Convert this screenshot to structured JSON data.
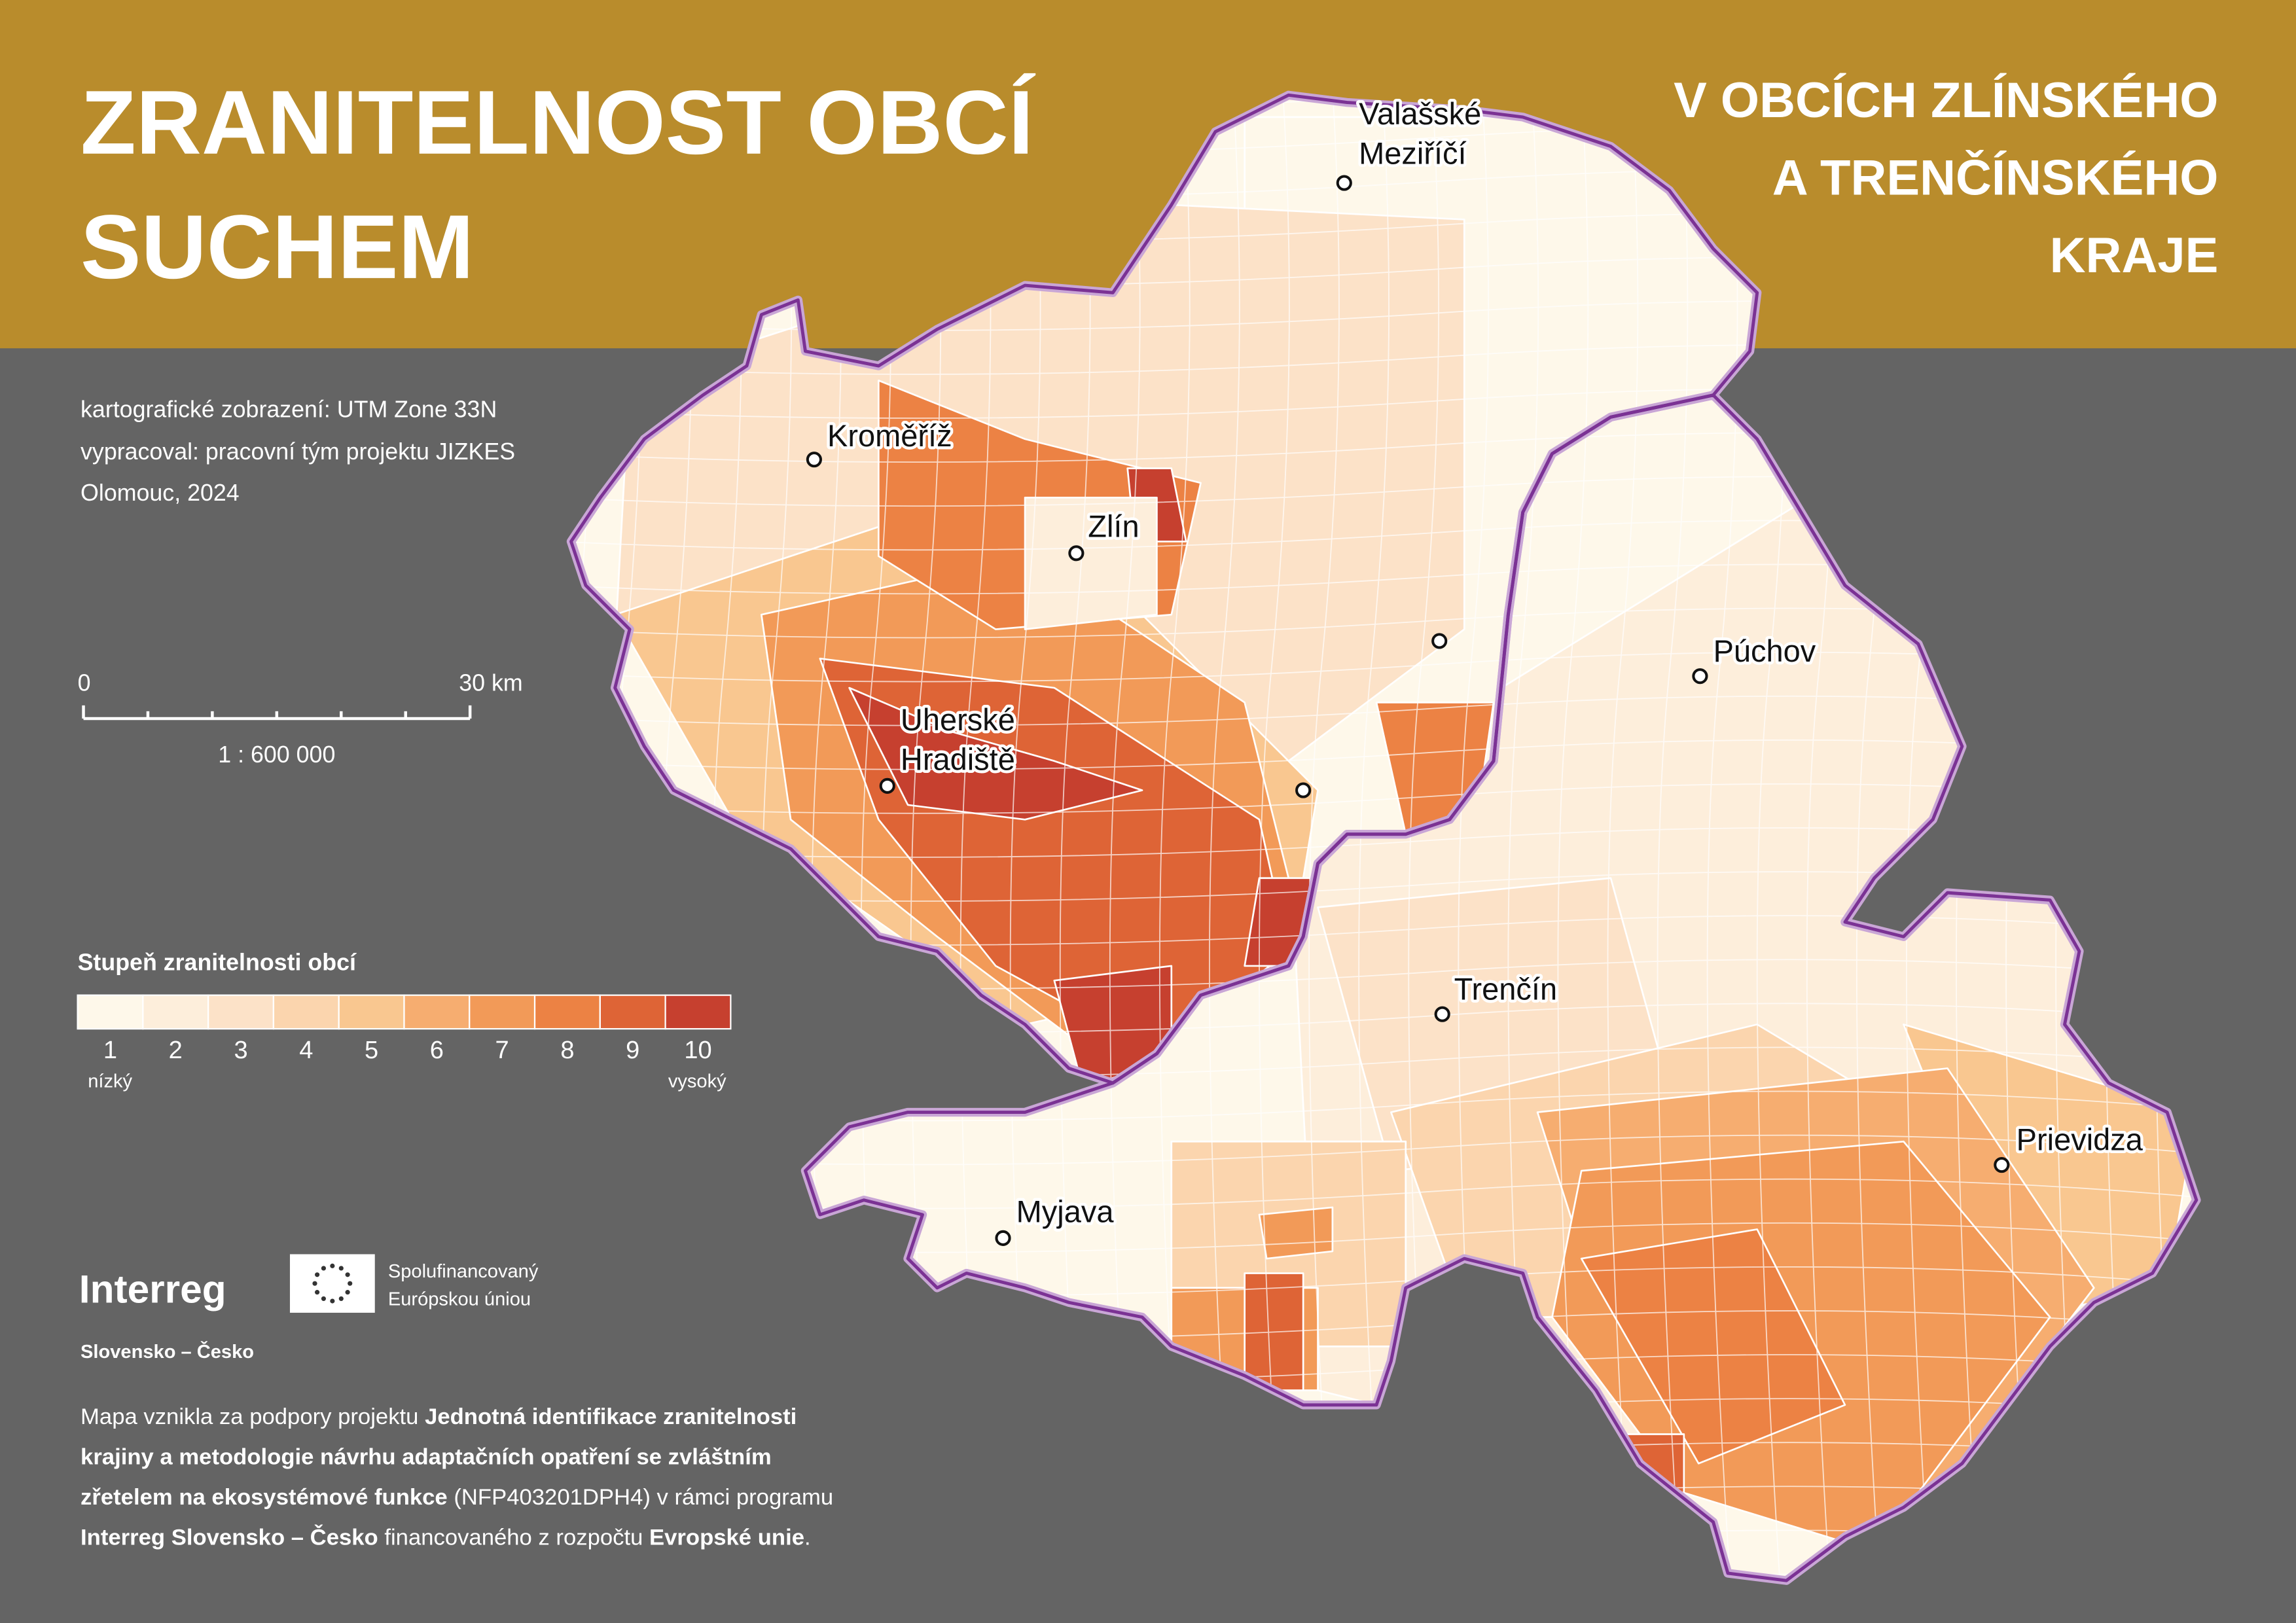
{
  "header": {
    "title": [
      "ZRANITELNOST OBCÍ",
      "SUCHEM"
    ],
    "subtitle": [
      "V OBCÍCH ZLÍNSKÉHO",
      "A TRENČÍNSKÉHO",
      "KRAJE"
    ]
  },
  "info": [
    "kartografické zobrazení: UTM Zone 33N",
    "vypracoval: pracovní tým projektu JIZKES",
    "Olomouc, 2024"
  ],
  "scale_bar": {
    "start": "0",
    "end": "30 km",
    "ratio": "1 : 600 000"
  },
  "legend": {
    "title": "Stupeň zranitelnosti obcí",
    "classes": [
      {
        "label": 1,
        "color": "#fef8ea"
      },
      {
        "label": 2,
        "color": "#fdeedb"
      },
      {
        "label": 3,
        "color": "#fce2c8"
      },
      {
        "label": 4,
        "color": "#fbd5ae"
      },
      {
        "label": 5,
        "color": "#f9c790"
      },
      {
        "label": 6,
        "color": "#f6ad70"
      },
      {
        "label": 7,
        "color": "#f29a58"
      },
      {
        "label": 8,
        "color": "#ec8244"
      },
      {
        "label": 9,
        "color": "#de6436"
      },
      {
        "label": 10,
        "color": "#c6402f"
      }
    ],
    "low": "nízký",
    "high": "vysoký"
  },
  "cities": [
    {
      "name": [
        "Valašské",
        "Meziříčí"
      ]
    },
    {
      "name": [
        "Kroměříž"
      ]
    },
    {
      "name": [
        "Zlín"
      ]
    },
    {
      "name": [
        "Uherské",
        "Hradiště"
      ]
    },
    {
      "name": [
        "Púchov"
      ]
    },
    {
      "name": [
        "Trenčín"
      ]
    },
    {
      "name": [
        "Prievidza"
      ]
    },
    {
      "name": [
        "Myjava"
      ]
    }
  ],
  "logo": {
    "brand": "Interreg",
    "eu": [
      "Spolufinancovaný",
      "Európskou úniou"
    ],
    "program": "Slovensko – Česko"
  },
  "footer": [
    [
      {
        "text": "Mapa vznikla za podpory projektu "
      },
      {
        "text": "Jednotná identifikace zranitelnosti",
        "bold": true
      }
    ],
    [
      {
        "text": "krajiny a metodologie návrhu adaptačních opatření se zvláštním",
        "bold": true
      }
    ],
    [
      {
        "text": "zřetelem na ekosystémové funkce",
        "bold": true
      },
      {
        "text": " (NFP403201DPH4) v rámci programu"
      }
    ],
    [
      {
        "text": "Interreg Slovensko – Česko",
        "bold": true
      },
      {
        "text": " financovaného z rozpočtu "
      },
      {
        "text": "Evropské unie",
        "bold": true
      },
      {
        "text": "."
      }
    ]
  ]
}
